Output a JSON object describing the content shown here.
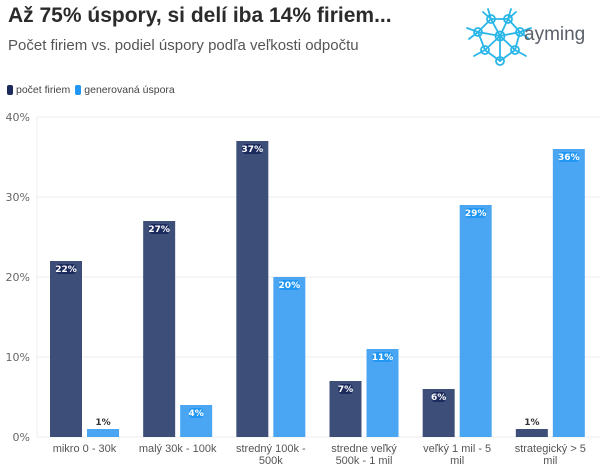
{
  "header": {
    "title": "Až 75% úspory, si delí iba 14% firiem...",
    "subtitle": "Počet firiem vs. podiel úspory podľa veľkosti odpočtu"
  },
  "logo": {
    "text": "ayming",
    "icon": "network-sphere-icon",
    "color": "#29b6e8"
  },
  "legend": [
    {
      "label": "počet firiem",
      "color": "#1c2a5e"
    },
    {
      "label": "generovaná úspora",
      "color": "#2196f3"
    }
  ],
  "chart_data": {
    "type": "bar",
    "title": "Až 75% úspory, si delí iba 14% firiem...",
    "subtitle": "Počet firiem vs. podiel úspory podľa veľkosti odpočtu",
    "xlabel": "",
    "ylabel": "",
    "ylim": [
      0,
      40
    ],
    "yticks": [
      "0%",
      "10%",
      "20%",
      "30%",
      "40%"
    ],
    "grid": true,
    "legend_position": "top-left",
    "categories": [
      [
        "mikro 0 - 30k"
      ],
      [
        "malý 30k - 100k"
      ],
      [
        "stredný 100k -",
        "500k"
      ],
      [
        "stredne veľký",
        "500k - 1 mil"
      ],
      [
        "veľký 1 mil - 5",
        "mil"
      ],
      [
        "strategický > 5",
        "mil"
      ]
    ],
    "series": [
      {
        "name": "počet firiem",
        "color": "#3d4f78",
        "values": [
          22,
          27,
          37,
          7,
          6,
          1
        ]
      },
      {
        "name": "generovaná úspora",
        "color": "#4aa6f2",
        "values": [
          1,
          4,
          20,
          11,
          29,
          36
        ]
      }
    ]
  }
}
